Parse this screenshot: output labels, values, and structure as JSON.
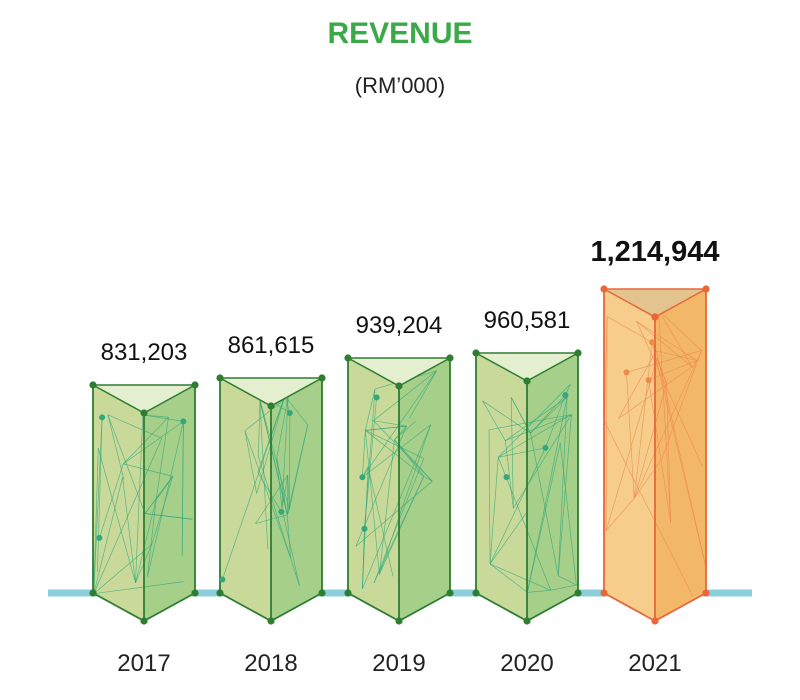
{
  "chart_data": {
    "type": "bar",
    "title": "REVENUE",
    "subtitle": "(RM’000)",
    "categories": [
      "2017",
      "2018",
      "2019",
      "2020",
      "2021"
    ],
    "values": [
      831203,
      861615,
      939204,
      960581,
      1214944
    ],
    "value_labels": [
      "831,203",
      "861,615",
      "939,204",
      "960,581",
      "1,214,944"
    ],
    "highlight_index": 4,
    "colors": {
      "title": "#3aaa48",
      "baseline": "#8ccfdc",
      "green_front": "#c9d99a",
      "green_side": "#a6cf8a",
      "green_top": "#e4efcf",
      "green_edge": "#2e7d32",
      "green_mesh": "#34a87a",
      "orange_front": "#f6cd8a",
      "orange_side": "#f2b767",
      "orange_top": "#e3c48e",
      "orange_edge": "#e8663a",
      "orange_mesh": "#ef8a4c"
    }
  }
}
